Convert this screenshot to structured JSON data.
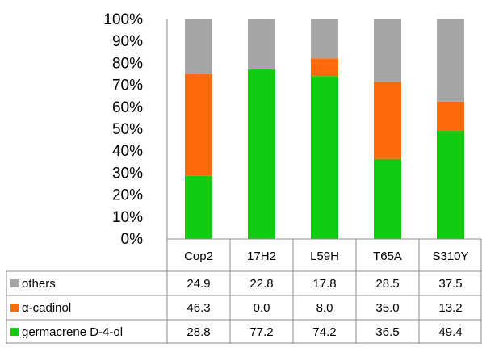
{
  "chart_data": {
    "type": "bar",
    "stacked": true,
    "categories": [
      "Cop2",
      "17H2",
      "L59H",
      "T65A",
      "S310Y"
    ],
    "series": [
      {
        "name": "germacrene D-4-ol",
        "values": [
          28.8,
          77.2,
          74.2,
          36.5,
          49.4
        ],
        "color": "#11cc11"
      },
      {
        "name": "α-cadinol",
        "values": [
          46.3,
          0.0,
          8.0,
          35.0,
          13.2
        ],
        "color": "#ff6a0d"
      },
      {
        "name": "others",
        "values": [
          24.9,
          22.8,
          17.8,
          28.5,
          37.5
        ],
        "color": "#a6a6a6"
      }
    ],
    "table_rows": [
      {
        "name": "others",
        "cells": [
          "24.9",
          "22.8",
          "17.8",
          "28.5",
          "37.5"
        ]
      },
      {
        "name": "α-cadinol",
        "cells": [
          "46.3",
          "0.0",
          "8.0",
          "35.0",
          "13.2"
        ]
      },
      {
        "name": "germacrene D-4-ol",
        "cells": [
          "28.8",
          "77.2",
          "74.2",
          "36.5",
          "49.4"
        ]
      }
    ],
    "yticks": [
      "0%",
      "10%",
      "20%",
      "30%",
      "40%",
      "50%",
      "60%",
      "70%",
      "80%",
      "90%",
      "100%"
    ],
    "ylim": [
      0,
      100
    ],
    "grid": false,
    "legend": "data-table"
  }
}
